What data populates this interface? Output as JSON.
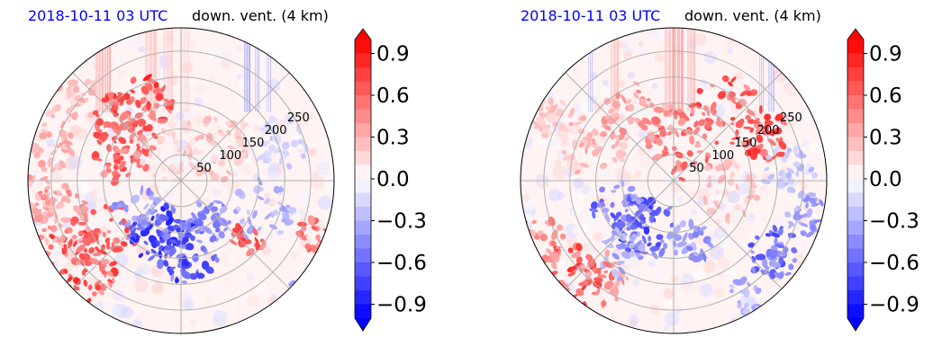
{
  "chart_data": [
    {
      "type": "heatmap",
      "title_left": "2018-10-11 03 UTC",
      "title_right": "down. vent. (4 km)",
      "projection": "polar",
      "range_rings": [
        50,
        100,
        150,
        200,
        250
      ],
      "colorbar": {
        "ticks": [
          "0.9",
          "0.6",
          "0.3",
          "0.0",
          "−0.3",
          "−0.6",
          "−0.9"
        ],
        "range": [
          -1.0,
          1.0
        ],
        "extend": "both",
        "colormap": "bwr"
      },
      "colors": {
        "positive": "#ff0000",
        "negative": "#0000ff",
        "neutral": "#ffffff"
      }
    },
    {
      "type": "heatmap",
      "title_left": "2018-10-11 03 UTC",
      "title_right": "down. vent. (4 km)",
      "projection": "polar",
      "range_rings": [
        50,
        100,
        150,
        200,
        250
      ],
      "colorbar": {
        "ticks": [
          "0.9",
          "0.6",
          "0.3",
          "0.0",
          "−0.3",
          "−0.6",
          "−0.9"
        ],
        "range": [
          -1.0,
          1.0
        ],
        "extend": "both",
        "colormap": "bwr"
      },
      "colors": {
        "positive": "#ff0000",
        "negative": "#0000ff",
        "neutral": "#ffffff"
      }
    }
  ]
}
